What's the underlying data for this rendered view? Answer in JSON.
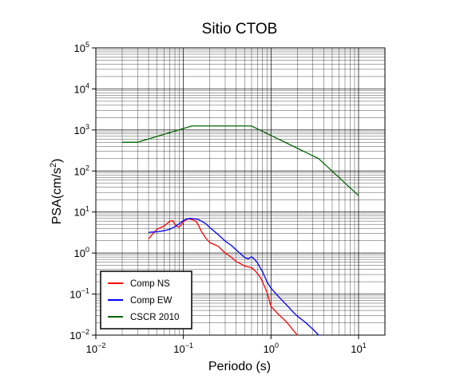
{
  "chart_data": {
    "type": "line",
    "title": "Sitio CTOB",
    "xlabel": "Periodo (s)",
    "ylabel_base": "PSA(cm/s",
    "ylabel_sup": "2",
    "ylabel_close": ")",
    "x_scale": "log",
    "y_scale": "log",
    "xlim": [
      0.01,
      20
    ],
    "ylim": [
      0.01,
      100000
    ],
    "grid": true,
    "legend_position": "bottom-left",
    "x_ticks": [
      {
        "value": 0.01,
        "base": "10",
        "exp": "−2"
      },
      {
        "value": 0.1,
        "base": "10",
        "exp": "−1"
      },
      {
        "value": 1,
        "base": "10",
        "exp": "0"
      },
      {
        "value": 10,
        "base": "10",
        "exp": "1"
      }
    ],
    "y_ticks": [
      {
        "value": 0.01,
        "base": "10",
        "exp": "−2"
      },
      {
        "value": 0.1,
        "base": "10",
        "exp": "−1"
      },
      {
        "value": 1,
        "base": "10",
        "exp": "0"
      },
      {
        "value": 10,
        "base": "10",
        "exp": "1"
      },
      {
        "value": 100,
        "base": "10",
        "exp": "2"
      },
      {
        "value": 1000,
        "base": "10",
        "exp": "3"
      },
      {
        "value": 10000,
        "base": "10",
        "exp": "4"
      },
      {
        "value": 100000,
        "base": "10",
        "exp": "5"
      }
    ],
    "series": [
      {
        "name": "Comp NS",
        "color": "#ff0000",
        "x": [
          0.04,
          0.045,
          0.05,
          0.055,
          0.06,
          0.065,
          0.07,
          0.075,
          0.08,
          0.085,
          0.09,
          0.095,
          0.1,
          0.105,
          0.11,
          0.115,
          0.12,
          0.13,
          0.14,
          0.15,
          0.16,
          0.18,
          0.2,
          0.25,
          0.3,
          0.35,
          0.4,
          0.45,
          0.5,
          0.55,
          0.6,
          0.65,
          0.7,
          0.75,
          0.8,
          0.9,
          1.0,
          1.2,
          1.5,
          1.8,
          2.0
        ],
        "y": [
          2.2,
          3.0,
          3.8,
          4.2,
          4.5,
          5.2,
          5.9,
          6.2,
          5.0,
          4.4,
          4.3,
          5.0,
          5.8,
          6.3,
          6.6,
          6.8,
          6.7,
          6.4,
          5.8,
          4.6,
          3.4,
          2.3,
          1.8,
          1.45,
          1.0,
          0.8,
          0.62,
          0.55,
          0.48,
          0.46,
          0.44,
          0.38,
          0.32,
          0.26,
          0.2,
          0.11,
          0.05,
          0.033,
          0.021,
          0.013,
          0.01
        ]
      },
      {
        "name": "Comp EW",
        "color": "#0000ff",
        "x": [
          0.04,
          0.05,
          0.06,
          0.07,
          0.08,
          0.09,
          0.1,
          0.11,
          0.12,
          0.13,
          0.14,
          0.15,
          0.16,
          0.18,
          0.2,
          0.25,
          0.3,
          0.35,
          0.4,
          0.45,
          0.5,
          0.55,
          0.6,
          0.65,
          0.7,
          0.8,
          0.9,
          1.0,
          1.2,
          1.5,
          1.8,
          2.0,
          2.5,
          3.0,
          3.5
        ],
        "y": [
          3.2,
          3.3,
          3.5,
          3.8,
          4.4,
          5.2,
          6.2,
          6.8,
          7.0,
          6.9,
          6.7,
          6.5,
          6.0,
          5.2,
          4.2,
          2.8,
          1.95,
          1.55,
          1.2,
          0.95,
          0.78,
          0.72,
          0.82,
          0.7,
          0.58,
          0.35,
          0.2,
          0.14,
          0.09,
          0.055,
          0.036,
          0.029,
          0.02,
          0.014,
          0.01
        ]
      },
      {
        "name": "CSCR 2010",
        "color": "#006400",
        "x": [
          0.02,
          0.03,
          0.125,
          0.6,
          3.5,
          10
        ],
        "y": [
          500,
          500,
          1250,
          1250,
          200,
          25
        ]
      }
    ]
  }
}
